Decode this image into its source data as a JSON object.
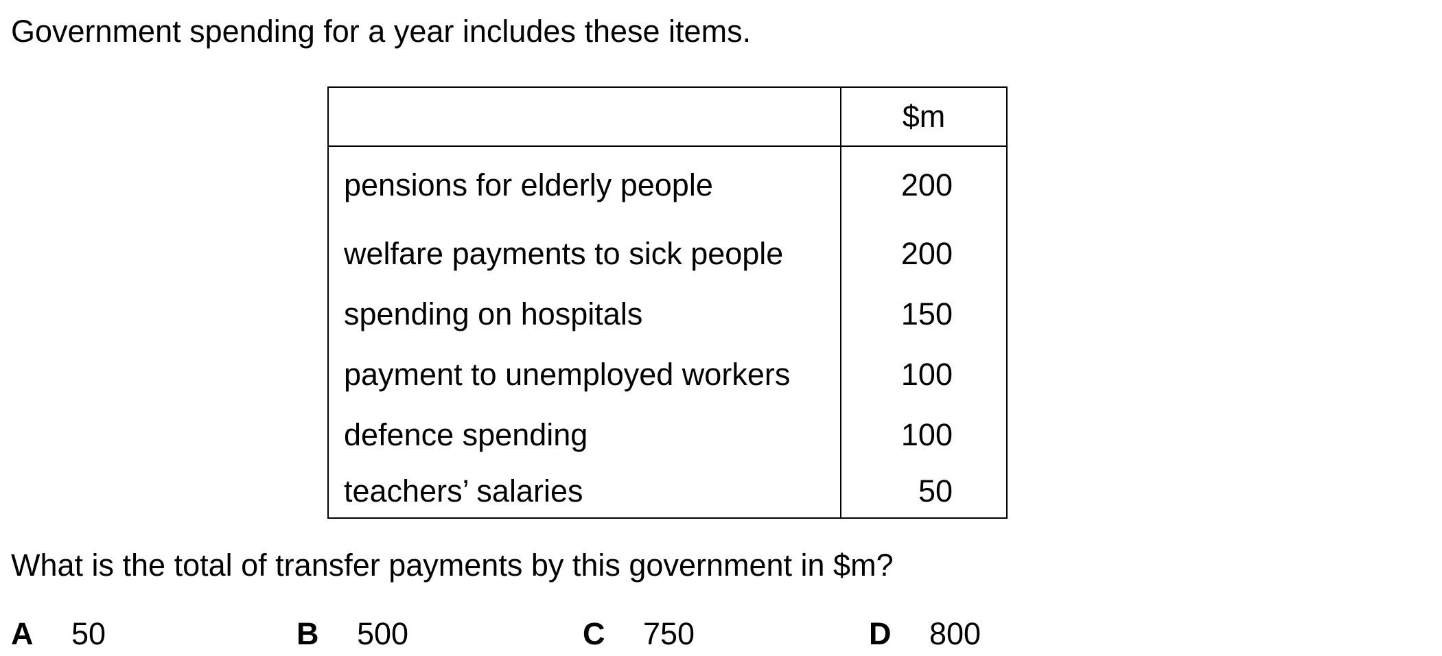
{
  "intro": "Government spending for a year includes these items.",
  "table": {
    "header": {
      "item": "",
      "unit": "$m"
    },
    "rows": [
      {
        "item": "pensions for elderly people",
        "value": "200"
      },
      {
        "item": "welfare payments to sick people",
        "value": "200"
      },
      {
        "item": "spending on hospitals",
        "value": "150"
      },
      {
        "item": "payment to unemployed workers",
        "value": "100"
      },
      {
        "item": "defence spending",
        "value": "100"
      },
      {
        "item": "teachers’ salaries",
        "value": "50"
      }
    ]
  },
  "question": "What is the total of transfer payments by this government in $m?",
  "options": [
    {
      "letter": "A",
      "value": "50"
    },
    {
      "letter": "B",
      "value": "500"
    },
    {
      "letter": "C",
      "value": "750"
    },
    {
      "letter": "D",
      "value": "800"
    }
  ]
}
